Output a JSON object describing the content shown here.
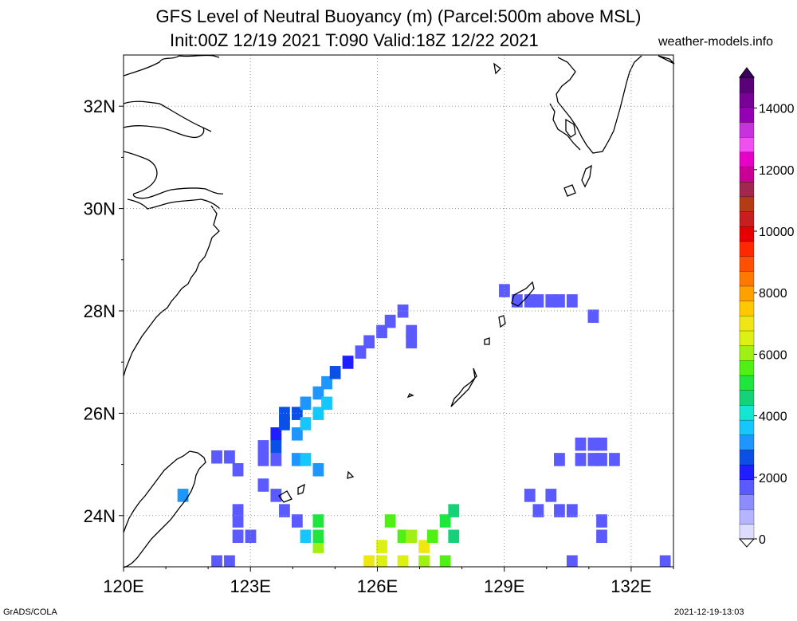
{
  "title": {
    "line1": "GFS Level of Neutral Buoyancy (m) (Parcel:500m above MSL)",
    "line2": "Init:00Z 12/19 2021 T:090 Valid:18Z 12/22 2021",
    "site": "weather-models.info"
  },
  "footer": {
    "left": "GrADS/COLA",
    "right": "2021-12-19-13:03"
  },
  "map": {
    "lon_range": [
      120,
      133
    ],
    "lat_range": [
      23,
      33
    ],
    "lon_ticks": [
      {
        "v": 120,
        "label": "120E"
      },
      {
        "v": 123,
        "label": "123E"
      },
      {
        "v": 126,
        "label": "126E"
      },
      {
        "v": 129,
        "label": "129E"
      },
      {
        "v": 132,
        "label": "132E"
      }
    ],
    "lat_ticks": [
      {
        "v": 24,
        "label": "24N"
      },
      {
        "v": 26,
        "label": "26N"
      },
      {
        "v": 28,
        "label": "28N"
      },
      {
        "v": 30,
        "label": "30N"
      },
      {
        "v": 32,
        "label": "32N"
      }
    ],
    "grid": true
  },
  "colorbar": {
    "labels": [
      "0",
      "2000",
      "4000",
      "6000",
      "8000",
      "10000",
      "12000",
      "14000"
    ],
    "colors": [
      "#dcdcff",
      "#b4b4ff",
      "#8c8cff",
      "#5a5aff",
      "#1e1eff",
      "#0a50e6",
      "#1e96ff",
      "#14c8ff",
      "#14e6d2",
      "#14d278",
      "#1ee63c",
      "#50f014",
      "#a0f014",
      "#dcf014",
      "#f0e614",
      "#ffc800",
      "#ffa000",
      "#ff7800",
      "#ff5000",
      "#ff2800",
      "#e60000",
      "#c81e1e",
      "#b43c14",
      "#a02850",
      "#c80096",
      "#e600c8",
      "#f050f0",
      "#c832dc",
      "#9600b4",
      "#780096",
      "#5a0078"
    ]
  },
  "field": {
    "units": "m",
    "cells": [
      {
        "lon": 122.2,
        "lat": 25.15,
        "v": 1500
      },
      {
        "lon": 122.5,
        "lat": 25.15,
        "v": 1500
      },
      {
        "lon": 122.7,
        "lat": 24.9,
        "v": 1500
      },
      {
        "lon": 121.4,
        "lat": 24.4,
        "v": 3200
      },
      {
        "lon": 123.3,
        "lat": 25.35,
        "v": 1500
      },
      {
        "lon": 123.6,
        "lat": 25.6,
        "v": 2200
      },
      {
        "lon": 123.6,
        "lat": 25.35,
        "v": 2600
      },
      {
        "lon": 123.6,
        "lat": 25.1,
        "v": 1700
      },
      {
        "lon": 123.3,
        "lat": 25.1,
        "v": 1600
      },
      {
        "lon": 123.8,
        "lat": 25.8,
        "v": 2800
      },
      {
        "lon": 123.8,
        "lat": 26.0,
        "v": 2500
      },
      {
        "lon": 124.1,
        "lat": 26.0,
        "v": 2900
      },
      {
        "lon": 124.3,
        "lat": 26.2,
        "v": 3000
      },
      {
        "lon": 124.6,
        "lat": 26.4,
        "v": 3200
      },
      {
        "lon": 124.8,
        "lat": 26.6,
        "v": 3000
      },
      {
        "lon": 125.0,
        "lat": 26.8,
        "v": 2800
      },
      {
        "lon": 125.3,
        "lat": 27.0,
        "v": 2300
      },
      {
        "lon": 125.6,
        "lat": 27.2,
        "v": 1900
      },
      {
        "lon": 125.8,
        "lat": 27.4,
        "v": 1500
      },
      {
        "lon": 126.1,
        "lat": 27.6,
        "v": 1500
      },
      {
        "lon": 126.3,
        "lat": 27.8,
        "v": 1500
      },
      {
        "lon": 126.6,
        "lat": 28.0,
        "v": 1500
      },
      {
        "lon": 126.8,
        "lat": 27.6,
        "v": 1500
      },
      {
        "lon": 126.8,
        "lat": 27.4,
        "v": 1700
      },
      {
        "lon": 124.1,
        "lat": 25.6,
        "v": 3300
      },
      {
        "lon": 124.3,
        "lat": 25.8,
        "v": 3600
      },
      {
        "lon": 124.6,
        "lat": 26.0,
        "v": 3700
      },
      {
        "lon": 124.8,
        "lat": 26.2,
        "v": 3500
      },
      {
        "lon": 124.1,
        "lat": 25.1,
        "v": 3100
      },
      {
        "lon": 124.3,
        "lat": 25.1,
        "v": 3400
      },
      {
        "lon": 124.6,
        "lat": 24.9,
        "v": 3000
      },
      {
        "lon": 123.3,
        "lat": 24.6,
        "v": 1500
      },
      {
        "lon": 123.6,
        "lat": 24.4,
        "v": 1700
      },
      {
        "lon": 123.8,
        "lat": 24.1,
        "v": 1500
      },
      {
        "lon": 124.1,
        "lat": 23.9,
        "v": 1600
      },
      {
        "lon": 124.3,
        "lat": 23.6,
        "v": 3500
      },
      {
        "lon": 124.6,
        "lat": 23.4,
        "v": 6000
      },
      {
        "lon": 124.6,
        "lat": 23.6,
        "v": 5200
      },
      {
        "lon": 124.6,
        "lat": 23.9,
        "v": 5000
      },
      {
        "lon": 122.7,
        "lat": 24.1,
        "v": 1800
      },
      {
        "lon": 122.7,
        "lat": 23.9,
        "v": 1500
      },
      {
        "lon": 122.7,
        "lat": 23.6,
        "v": 1500
      },
      {
        "lon": 123.0,
        "lat": 23.6,
        "v": 1500
      },
      {
        "lon": 122.2,
        "lat": 23.1,
        "v": 1500
      },
      {
        "lon": 122.5,
        "lat": 23.1,
        "v": 1500
      },
      {
        "lon": 126.3,
        "lat": 23.9,
        "v": 5500
      },
      {
        "lon": 126.6,
        "lat": 23.6,
        "v": 5800
      },
      {
        "lon": 126.8,
        "lat": 23.6,
        "v": 6200
      },
      {
        "lon": 127.1,
        "lat": 23.4,
        "v": 6800
      },
      {
        "lon": 126.1,
        "lat": 23.4,
        "v": 6500
      },
      {
        "lon": 125.8,
        "lat": 23.1,
        "v": 7000
      },
      {
        "lon": 126.1,
        "lat": 23.1,
        "v": 6600
      },
      {
        "lon": 126.6,
        "lat": 23.1,
        "v": 6400
      },
      {
        "lon": 127.1,
        "lat": 23.1,
        "v": 6000
      },
      {
        "lon": 127.3,
        "lat": 23.6,
        "v": 5800
      },
      {
        "lon": 127.6,
        "lat": 23.9,
        "v": 5000
      },
      {
        "lon": 127.8,
        "lat": 24.1,
        "v": 4700
      },
      {
        "lon": 127.8,
        "lat": 23.6,
        "v": 4800
      },
      {
        "lon": 127.6,
        "lat": 23.1,
        "v": 5500
      },
      {
        "lon": 129.0,
        "lat": 28.4,
        "v": 1500
      },
      {
        "lon": 129.3,
        "lat": 28.2,
        "v": 1500
      },
      {
        "lon": 129.6,
        "lat": 28.2,
        "v": 1500
      },
      {
        "lon": 129.8,
        "lat": 28.2,
        "v": 1500
      },
      {
        "lon": 130.1,
        "lat": 28.2,
        "v": 1500
      },
      {
        "lon": 130.3,
        "lat": 28.2,
        "v": 1500
      },
      {
        "lon": 130.6,
        "lat": 28.2,
        "v": 1500
      },
      {
        "lon": 131.1,
        "lat": 27.9,
        "v": 1500
      },
      {
        "lon": 130.8,
        "lat": 25.4,
        "v": 1500
      },
      {
        "lon": 131.1,
        "lat": 25.4,
        "v": 1700
      },
      {
        "lon": 131.3,
        "lat": 25.4,
        "v": 1500
      },
      {
        "lon": 131.6,
        "lat": 25.1,
        "v": 1500
      },
      {
        "lon": 131.3,
        "lat": 25.1,
        "v": 1500
      },
      {
        "lon": 131.1,
        "lat": 25.1,
        "v": 1500
      },
      {
        "lon": 130.8,
        "lat": 25.1,
        "v": 1500
      },
      {
        "lon": 130.3,
        "lat": 25.1,
        "v": 1500
      },
      {
        "lon": 129.6,
        "lat": 24.4,
        "v": 1500
      },
      {
        "lon": 129.8,
        "lat": 24.1,
        "v": 1500
      },
      {
        "lon": 130.1,
        "lat": 24.4,
        "v": 1500
      },
      {
        "lon": 130.3,
        "lat": 24.1,
        "v": 1500
      },
      {
        "lon": 130.6,
        "lat": 24.1,
        "v": 1500
      },
      {
        "lon": 131.3,
        "lat": 23.9,
        "v": 1500
      },
      {
        "lon": 131.3,
        "lat": 23.6,
        "v": 1500
      },
      {
        "lon": 130.6,
        "lat": 23.1,
        "v": 1500
      },
      {
        "lon": 132.8,
        "lat": 23.1,
        "v": 1500
      }
    ]
  }
}
